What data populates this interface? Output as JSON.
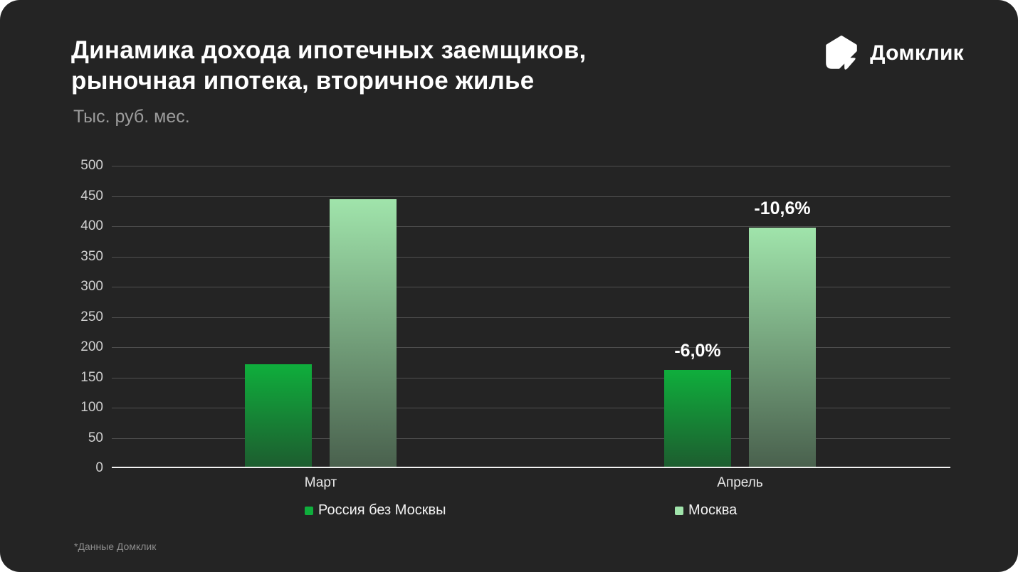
{
  "header": {
    "title_line1": "Динамика дохода ипотечных заемщиков,",
    "title_line2": "рыночная ипотека, вторичное жилье",
    "subtitle": "Тыс. руб. мес.",
    "logo_text": "Домклик"
  },
  "footnote": "*Данные Домклик",
  "colors": {
    "card_bg": "#242424",
    "page_bg": "#ffffff",
    "grid_line": "#4f4f4f",
    "axis_line": "#f2f2f2",
    "tick_label": "#cfcfcf",
    "category_label": "#e8e8e8",
    "bar_label": "#ffffff",
    "legend_text": "#f2f2f2",
    "footnote_text": "#8c8c8c",
    "russia_gradient_top": "#0fae3c",
    "russia_gradient_bottom": "#1d5c2f",
    "moscow_gradient_top": "#a0e4ab",
    "moscow_gradient_bottom": "#49604d"
  },
  "chart_data": {
    "type": "bar",
    "title": "Динамика дохода ипотечных заемщиков, рыночная ипотека, вторичное жилье",
    "ylabel": "Тыс. руб. мес.",
    "xlabel": "",
    "categories": [
      "Март",
      "Апрель"
    ],
    "series": [
      {
        "name": "Россия без Москвы",
        "values": [
          172,
          162
        ],
        "bar_labels": [
          "",
          "-6,0%"
        ]
      },
      {
        "name": "Москва",
        "values": [
          445,
          398
        ],
        "bar_labels": [
          "",
          "-10,6%"
        ]
      }
    ],
    "ylim": [
      0,
      500
    ],
    "y_tick_step": 50,
    "y_ticks": [
      "0",
      "50",
      "100",
      "150",
      "200",
      "250",
      "300",
      "350",
      "400",
      "450",
      "500"
    ],
    "grid": true,
    "legend_position": "bottom",
    "annotation_note": "*Данные Домклик"
  }
}
